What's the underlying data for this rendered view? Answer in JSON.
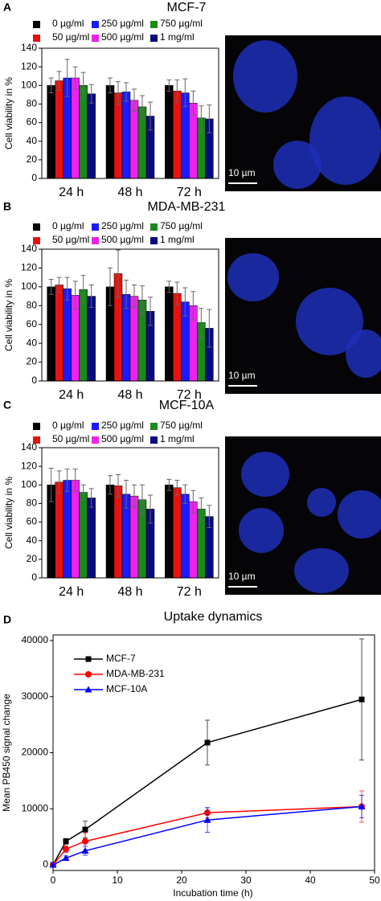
{
  "panel_labels": [
    "A",
    "B",
    "C",
    "D"
  ],
  "images": [
    {
      "scale_bar": "10 µm"
    },
    {
      "scale_bar": "10 µm"
    },
    {
      "scale_bar": "10 µm"
    }
  ],
  "chart_data": [
    {
      "type": "bar",
      "title": "MCF-7",
      "ylabel": "Cell viability in %",
      "categories": [
        "24 h",
        "48 h",
        "72 h"
      ],
      "ylim": [
        0,
        140
      ],
      "yticks": [
        0,
        20,
        40,
        60,
        80,
        100,
        120,
        140
      ],
      "series": [
        {
          "name": "0 µg/ml",
          "color": "#000000",
          "values": [
            100,
            100,
            100
          ],
          "errors": [
            8,
            8,
            6
          ]
        },
        {
          "name": "50 µg/ml",
          "color": "#e8120c",
          "values": [
            105,
            92,
            94
          ],
          "errors": [
            10,
            12,
            12
          ]
        },
        {
          "name": "250 µg/ml",
          "color": "#1a1aff",
          "values": [
            108,
            93,
            92
          ],
          "errors": [
            20,
            10,
            15
          ]
        },
        {
          "name": "500 µg/ml",
          "color": "#ee22ee",
          "values": [
            108,
            84,
            81
          ],
          "errors": [
            12,
            12,
            13
          ]
        },
        {
          "name": "750 µg/ml",
          "color": "#1a8a1a",
          "values": [
            100,
            77,
            65
          ],
          "errors": [
            14,
            12,
            13
          ]
        },
        {
          "name": "1 mg/ml",
          "color": "#0a0a80",
          "values": [
            91,
            67,
            64
          ],
          "errors": [
            10,
            15,
            15
          ]
        }
      ]
    },
    {
      "type": "bar",
      "title": "MDA-MB-231",
      "ylabel": "Cell viability in %",
      "categories": [
        "24 h",
        "48 h",
        "72 h"
      ],
      "ylim": [
        0,
        140
      ],
      "yticks": [
        0,
        20,
        40,
        60,
        80,
        100,
        120,
        140
      ],
      "series": [
        {
          "name": "0 µg/ml",
          "color": "#000000",
          "values": [
            100,
            100,
            100
          ],
          "errors": [
            8,
            20,
            6
          ]
        },
        {
          "name": "50 µg/ml",
          "color": "#e8120c",
          "values": [
            102,
            114,
            93
          ],
          "errors": [
            8,
            25,
            12
          ]
        },
        {
          "name": "250 µg/ml",
          "color": "#1a1aff",
          "values": [
            98,
            92,
            84
          ],
          "errors": [
            12,
            15,
            15
          ]
        },
        {
          "name": "500 µg/ml",
          "color": "#ee22ee",
          "values": [
            91,
            90,
            80
          ],
          "errors": [
            15,
            12,
            15
          ]
        },
        {
          "name": "750 µg/ml",
          "color": "#1a8a1a",
          "values": [
            97,
            86,
            62
          ],
          "errors": [
            15,
            15,
            15
          ]
        },
        {
          "name": "1 mg/ml",
          "color": "#0a0a80",
          "values": [
            90,
            74,
            56
          ],
          "errors": [
            12,
            15,
            20
          ]
        }
      ]
    },
    {
      "type": "bar",
      "title": "MCF-10A",
      "ylabel": "Cell viability in %",
      "categories": [
        "24 h",
        "48 h",
        "72 h"
      ],
      "ylim": [
        0,
        140
      ],
      "yticks": [
        0,
        20,
        40,
        60,
        80,
        100,
        120,
        140
      ],
      "series": [
        {
          "name": "0 µg/ml",
          "color": "#000000",
          "values": [
            100,
            100,
            100
          ],
          "errors": [
            18,
            10,
            6
          ]
        },
        {
          "name": "50 µg/ml",
          "color": "#e8120c",
          "values": [
            103,
            99,
            97
          ],
          "errors": [
            12,
            12,
            8
          ]
        },
        {
          "name": "250 µg/ml",
          "color": "#1a1aff",
          "values": [
            105,
            90,
            90
          ],
          "errors": [
            12,
            15,
            10
          ]
        },
        {
          "name": "500 µg/ml",
          "color": "#ee22ee",
          "values": [
            105,
            88,
            82
          ],
          "errors": [
            12,
            12,
            12
          ]
        },
        {
          "name": "750 µg/ml",
          "color": "#1a8a1a",
          "values": [
            92,
            84,
            74
          ],
          "errors": [
            8,
            16,
            12
          ]
        },
        {
          "name": "1 mg/ml",
          "color": "#0a0a80",
          "values": [
            86,
            74,
            66
          ],
          "errors": [
            10,
            15,
            12
          ]
        }
      ]
    },
    {
      "type": "line",
      "title": "Uptake dynamics",
      "xlabel": "Incubation time (h)",
      "ylabel": "Mean PB450 signal change",
      "x": [
        0,
        2,
        5,
        24,
        48
      ],
      "xlim": [
        0,
        50
      ],
      "xticks": [
        0,
        10,
        20,
        30,
        40,
        50
      ],
      "ylim": [
        -1000,
        41000
      ],
      "yticks": [
        0,
        10000,
        20000,
        30000,
        40000
      ],
      "series": [
        {
          "name": "MCF-7",
          "color": "#000000",
          "marker": "square",
          "values": [
            0,
            4200,
            6300,
            21800,
            29500
          ],
          "errors": [
            300,
            500,
            1500,
            4000,
            10800
          ]
        },
        {
          "name": "MDA-MB-231",
          "color": "#ff0000",
          "marker": "circle",
          "values": [
            0,
            2800,
            4200,
            9300,
            10400
          ],
          "errors": [
            300,
            600,
            1500,
            900,
            2800
          ]
        },
        {
          "name": "MCF-10A",
          "color": "#0000ff",
          "marker": "triangle",
          "values": [
            0,
            1200,
            2500,
            8000,
            10400
          ],
          "errors": [
            200,
            400,
            800,
            2200,
            2000
          ]
        }
      ]
    }
  ]
}
